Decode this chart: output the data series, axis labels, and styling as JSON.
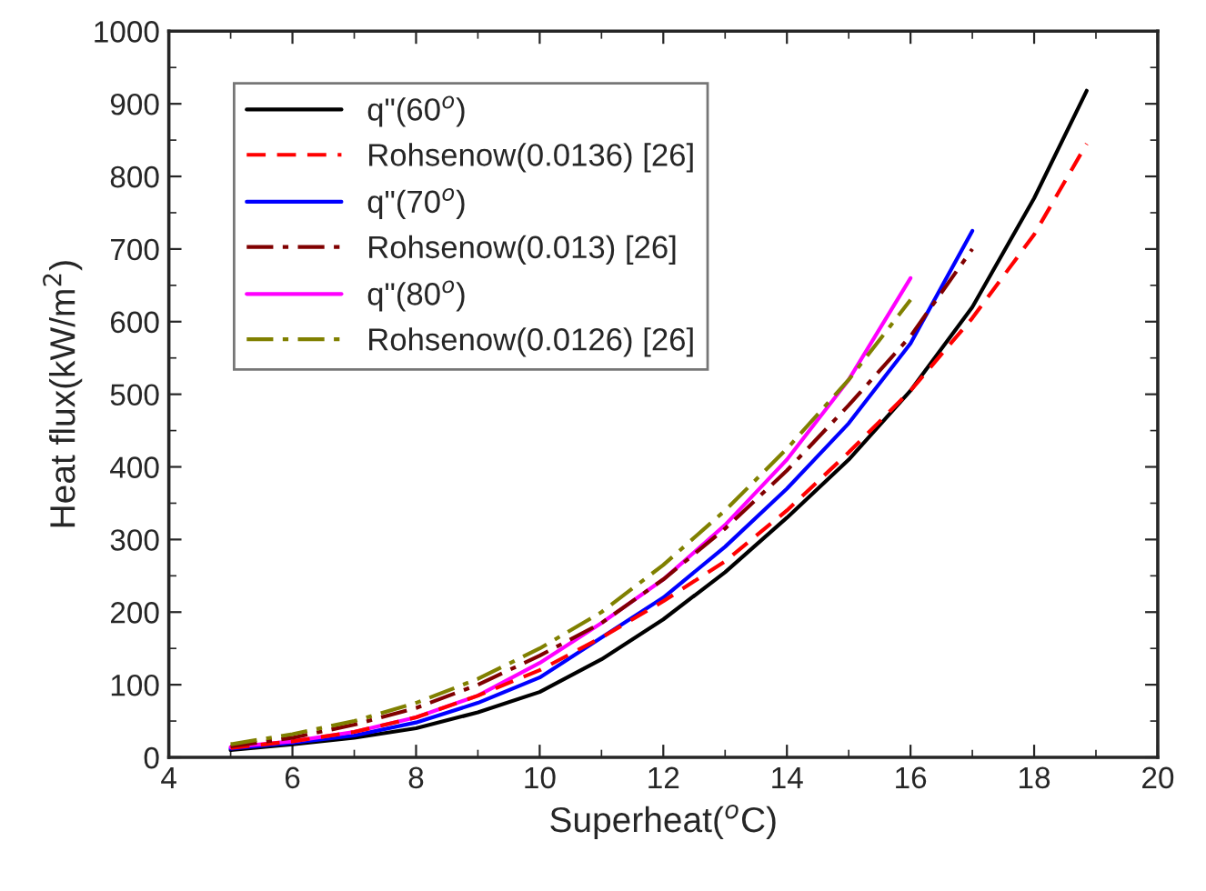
{
  "chart_data": {
    "type": "line",
    "xlabel": "Superheat($^{o}$C)",
    "ylabel": "Heat flux(kW/m$^{2}$)",
    "xlim": [
      4,
      20
    ],
    "xticks": [
      4,
      6,
      8,
      10,
      12,
      14,
      16,
      18,
      20
    ],
    "ylim": [
      0,
      1000
    ],
    "yticks": [
      0,
      100,
      200,
      300,
      400,
      500,
      600,
      700,
      800,
      900,
      1000
    ],
    "legend": "top left",
    "grid": false,
    "marker": "none",
    "series": [
      {
        "name": "q\"(60$^{o}$)",
        "color": "#000000",
        "line_style": "solid",
        "x": [
          5,
          6,
          7,
          8,
          9,
          10,
          11,
          12,
          13,
          14,
          15,
          16,
          17,
          18,
          18.85
        ],
        "values": [
          10,
          18,
          27,
          40,
          62,
          90,
          135,
          190,
          255,
          330,
          410,
          505,
          620,
          770,
          918
        ]
      },
      {
        "name": "Rohsenow(0.0136) [26]",
        "color": "#ff0000",
        "line_style": "dashed",
        "x": [
          5,
          6,
          7,
          8,
          9,
          10,
          11,
          12,
          13,
          14,
          15,
          16,
          17,
          18,
          18.85
        ],
        "values": [
          13,
          22,
          35,
          55,
          85,
          120,
          165,
          215,
          270,
          340,
          420,
          505,
          605,
          720,
          845
        ]
      },
      {
        "name": "q\"(70$^{o}$)",
        "color": "#0000ff",
        "line_style": "solid",
        "x": [
          5,
          6,
          7,
          8,
          9,
          10,
          11,
          12,
          13,
          14,
          15,
          16,
          17
        ],
        "values": [
          12,
          20,
          30,
          48,
          75,
          110,
          165,
          220,
          290,
          370,
          460,
          570,
          725
        ]
      },
      {
        "name": "Rohsenow(0.013) [26]",
        "color": "#800000",
        "line_style": "dashdot",
        "x": [
          5,
          6,
          7,
          8,
          9,
          10,
          11,
          12,
          13,
          14,
          15,
          16,
          17
        ],
        "values": [
          15,
          27,
          45,
          68,
          100,
          140,
          185,
          245,
          315,
          395,
          485,
          580,
          700
        ]
      },
      {
        "name": "q\"(80$^{o}$)",
        "color": "#ff00ff",
        "line_style": "solid",
        "x": [
          5,
          6,
          7,
          8,
          9,
          10,
          11,
          12,
          13,
          14,
          15,
          16
        ],
        "values": [
          14,
          22,
          35,
          55,
          85,
          130,
          185,
          245,
          320,
          410,
          520,
          660
        ]
      },
      {
        "name": "Rohsenow(0.0126) [26]",
        "color": "#808000",
        "line_style": "dashdot",
        "x": [
          5,
          6,
          7,
          8,
          9,
          10,
          11,
          12,
          13,
          14,
          15,
          16
        ],
        "values": [
          18,
          32,
          50,
          75,
          108,
          150,
          200,
          265,
          340,
          425,
          520,
          630
        ]
      }
    ]
  }
}
